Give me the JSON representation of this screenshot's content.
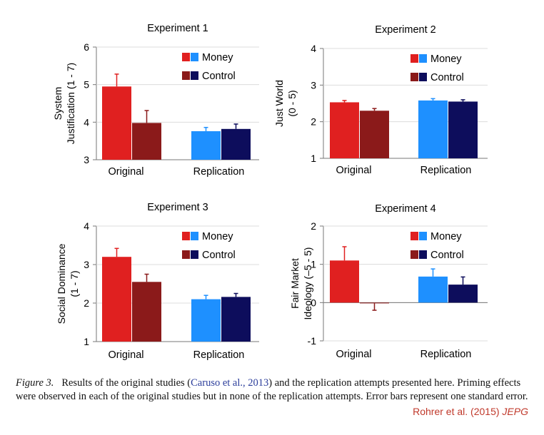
{
  "chart_data": [
    {
      "type": "bar",
      "title": "Experiment 1",
      "ylabel": [
        "System",
        "Justification (1 - 7)"
      ],
      "ylim": [
        3,
        6
      ],
      "yticks": [
        3,
        4,
        5,
        6
      ],
      "categories": [
        "Original",
        "Replication"
      ],
      "legend": [
        "Money",
        "Control"
      ],
      "bars": [
        {
          "group": "Original",
          "series": "Money",
          "value": 4.95,
          "error": 0.33,
          "color": "#e02020"
        },
        {
          "group": "Original",
          "series": "Control",
          "value": 3.98,
          "error": 0.33,
          "color": "#8b1a1a"
        },
        {
          "group": "Replication",
          "series": "Money",
          "value": 3.76,
          "error": 0.1,
          "color": "#1e90ff"
        },
        {
          "group": "Replication",
          "series": "Control",
          "value": 3.82,
          "error": 0.13,
          "color": "#0d0d5c"
        }
      ]
    },
    {
      "type": "bar",
      "title": "Experiment 2",
      "ylabel": [
        "Just World",
        "(0 - 5)"
      ],
      "ylim": [
        1,
        4
      ],
      "yticks": [
        1,
        2,
        3,
        4
      ],
      "categories": [
        "Original",
        "Replication"
      ],
      "legend": [
        "Money",
        "Control"
      ],
      "bars": [
        {
          "group": "Original",
          "series": "Money",
          "value": 2.53,
          "error": 0.05,
          "color": "#e02020"
        },
        {
          "group": "Original",
          "series": "Control",
          "value": 2.3,
          "error": 0.06,
          "color": "#8b1a1a"
        },
        {
          "group": "Replication",
          "series": "Money",
          "value": 2.58,
          "error": 0.05,
          "color": "#1e90ff"
        },
        {
          "group": "Replication",
          "series": "Control",
          "value": 2.55,
          "error": 0.05,
          "color": "#0d0d5c"
        }
      ]
    },
    {
      "type": "bar",
      "title": "Experiment 3",
      "ylabel": [
        "Social Dominance",
        "(1 - 7)"
      ],
      "ylim": [
        1,
        4
      ],
      "yticks": [
        1,
        2,
        3,
        4
      ],
      "categories": [
        "Original",
        "Replication"
      ],
      "legend": [
        "Money",
        "Control"
      ],
      "bars": [
        {
          "group": "Original",
          "series": "Money",
          "value": 3.2,
          "error": 0.22,
          "color": "#e02020"
        },
        {
          "group": "Original",
          "series": "Control",
          "value": 2.55,
          "error": 0.2,
          "color": "#8b1a1a"
        },
        {
          "group": "Replication",
          "series": "Money",
          "value": 2.1,
          "error": 0.1,
          "color": "#1e90ff"
        },
        {
          "group": "Replication",
          "series": "Control",
          "value": 2.16,
          "error": 0.09,
          "color": "#0d0d5c"
        }
      ]
    },
    {
      "type": "bar",
      "title": "Experiment 4",
      "ylabel": [
        "Fair Market",
        "Ideology (–5 - 5)"
      ],
      "ylim": [
        -1,
        2
      ],
      "yticks": [
        -1,
        0,
        1,
        2
      ],
      "categories": [
        "Original",
        "Replication"
      ],
      "legend": [
        "Money",
        "Control"
      ],
      "bars": [
        {
          "group": "Original",
          "series": "Money",
          "value": 1.1,
          "error": 0.36,
          "color": "#e02020"
        },
        {
          "group": "Original",
          "series": "Control",
          "value": -0.02,
          "error": 0.18,
          "color": "#8b1a1a"
        },
        {
          "group": "Replication",
          "series": "Money",
          "value": 0.68,
          "error": 0.2,
          "color": "#1e90ff"
        },
        {
          "group": "Replication",
          "series": "Control",
          "value": 0.47,
          "error": 0.2,
          "color": "#0d0d5c"
        }
      ]
    }
  ],
  "legend_colors": {
    "money": [
      "#e02020",
      "#1e90ff"
    ],
    "control": [
      "#8b1a1a",
      "#0d0d5c"
    ]
  },
  "caption": {
    "figure_label": "Figure 3.",
    "text_before": "Results of the original studies (",
    "citation": "Caruso et al., 2013",
    "text_after": ") and the replication attempts presented here. Priming effects were observed in each of the original studies but in none of the replication attempts. Error bars represent one standard error."
  },
  "credit": {
    "authors": "Rohrer et al. (2015)",
    "journal": "JEPG"
  }
}
